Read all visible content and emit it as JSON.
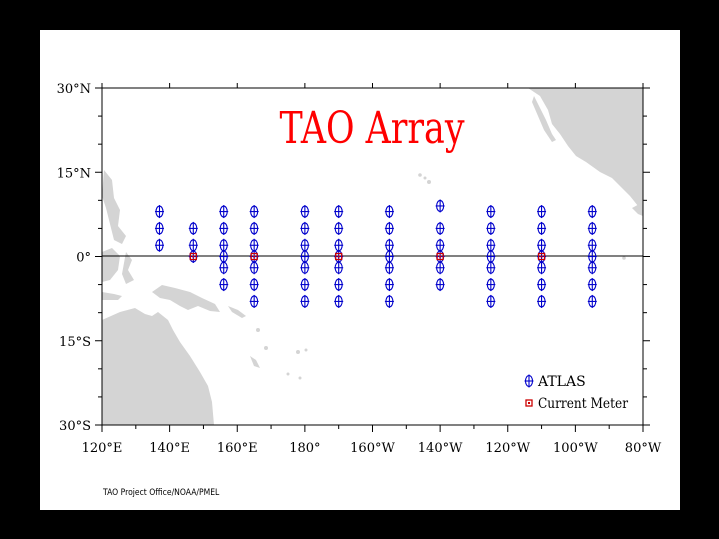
{
  "title": "TAO Array",
  "credit": "TAO Project Office/NOAA/PMEL",
  "colors": {
    "title": "#ff0000",
    "atlas": "#0000cc",
    "current_meter": "#cc0000",
    "land": "#d4d4d4",
    "background": "#000000",
    "panel": "#ffffff"
  },
  "legend": {
    "atlas": "ATLAS",
    "current_meter": "Current Meter"
  },
  "map": {
    "lon_range": [
      120,
      280
    ],
    "lat_range": [
      -30,
      30
    ],
    "x_ticks": [
      "120°E",
      "140°E",
      "160°E",
      "180°",
      "160°W",
      "140°W",
      "120°W",
      "100°W",
      "80°W"
    ],
    "y_ticks": [
      "30°N",
      "15°N",
      "0°",
      "15°S",
      "30°S"
    ],
    "equator_line": true
  },
  "chart_data": {
    "type": "scatter",
    "title": "TAO Array",
    "xlabel": "",
    "ylabel": "",
    "xlim": [
      120,
      280
    ],
    "ylim": [
      -30,
      30
    ],
    "series": [
      {
        "name": "ATLAS",
        "points": [
          [
            137,
            8
          ],
          [
            137,
            5
          ],
          [
            137,
            2
          ],
          [
            147,
            5
          ],
          [
            147,
            2
          ],
          [
            147,
            0
          ],
          [
            156,
            8
          ],
          [
            156,
            5
          ],
          [
            156,
            2
          ],
          [
            156,
            0
          ],
          [
            156,
            -2
          ],
          [
            156,
            -5
          ],
          [
            165,
            8
          ],
          [
            165,
            5
          ],
          [
            165,
            2
          ],
          [
            165,
            0
          ],
          [
            165,
            -2
          ],
          [
            165,
            -5
          ],
          [
            165,
            -8
          ],
          [
            180,
            8
          ],
          [
            180,
            5
          ],
          [
            180,
            2
          ],
          [
            180,
            0
          ],
          [
            180,
            -2
          ],
          [
            180,
            -5
          ],
          [
            180,
            -8
          ],
          [
            190,
            8
          ],
          [
            190,
            5
          ],
          [
            190,
            2
          ],
          [
            190,
            0
          ],
          [
            190,
            -2
          ],
          [
            190,
            -5
          ],
          [
            190,
            -8
          ],
          [
            205,
            8
          ],
          [
            205,
            5
          ],
          [
            205,
            2
          ],
          [
            205,
            0
          ],
          [
            205,
            -2
          ],
          [
            205,
            -5
          ],
          [
            205,
            -8
          ],
          [
            220,
            9
          ],
          [
            220,
            5
          ],
          [
            220,
            2
          ],
          [
            220,
            0
          ],
          [
            220,
            -2
          ],
          [
            220,
            -5
          ],
          [
            235,
            8
          ],
          [
            235,
            5
          ],
          [
            235,
            2
          ],
          [
            235,
            0
          ],
          [
            235,
            -2
          ],
          [
            235,
            -5
          ],
          [
            235,
            -8
          ],
          [
            250,
            8
          ],
          [
            250,
            5
          ],
          [
            250,
            2
          ],
          [
            250,
            0
          ],
          [
            250,
            -2
          ],
          [
            250,
            -5
          ],
          [
            250,
            -8
          ],
          [
            265,
            8
          ],
          [
            265,
            5
          ],
          [
            265,
            2
          ],
          [
            265,
            0
          ],
          [
            265,
            -2
          ],
          [
            265,
            -5
          ],
          [
            265,
            -8
          ]
        ]
      },
      {
        "name": "Current Meter",
        "points": [
          [
            147,
            0
          ],
          [
            165,
            0
          ],
          [
            190,
            0
          ],
          [
            220,
            0
          ],
          [
            250,
            0
          ]
        ]
      }
    ]
  }
}
